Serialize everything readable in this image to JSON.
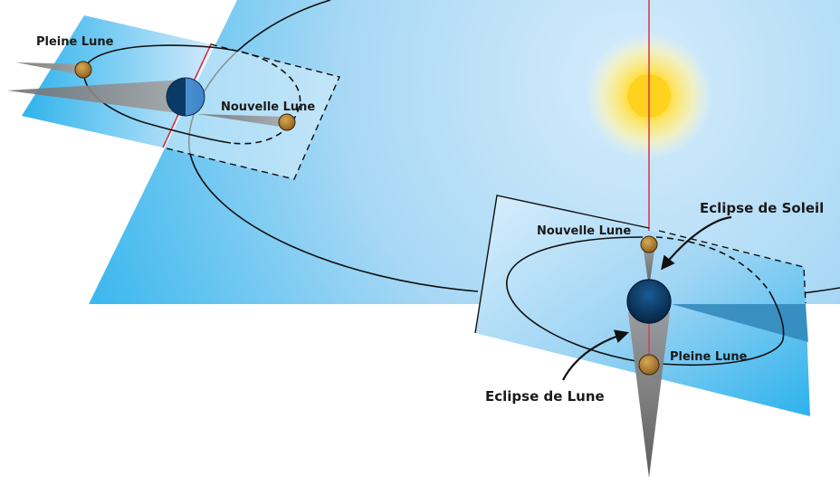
{
  "labels": {
    "full_moon_left": "Pleine Lune",
    "new_moon_left": "Nouvelle Lune",
    "new_moon_right": "Nouvelle Lune",
    "full_moon_right": "Pleine Lune",
    "solar_eclipse": "Eclipse de Soleil",
    "lunar_eclipse": "Eclipse de Lune"
  },
  "colors": {
    "ecliptic_light": "#cfe9fb",
    "ecliptic_dark": "#2eb3ec",
    "sun_core": "#ffd21f",
    "earth_dark": "#0b3a66",
    "earth_light": "#4a8fd0",
    "moon": "#b9852e",
    "shadow": "#7f7f7f",
    "axis_line": "#d9304a"
  }
}
